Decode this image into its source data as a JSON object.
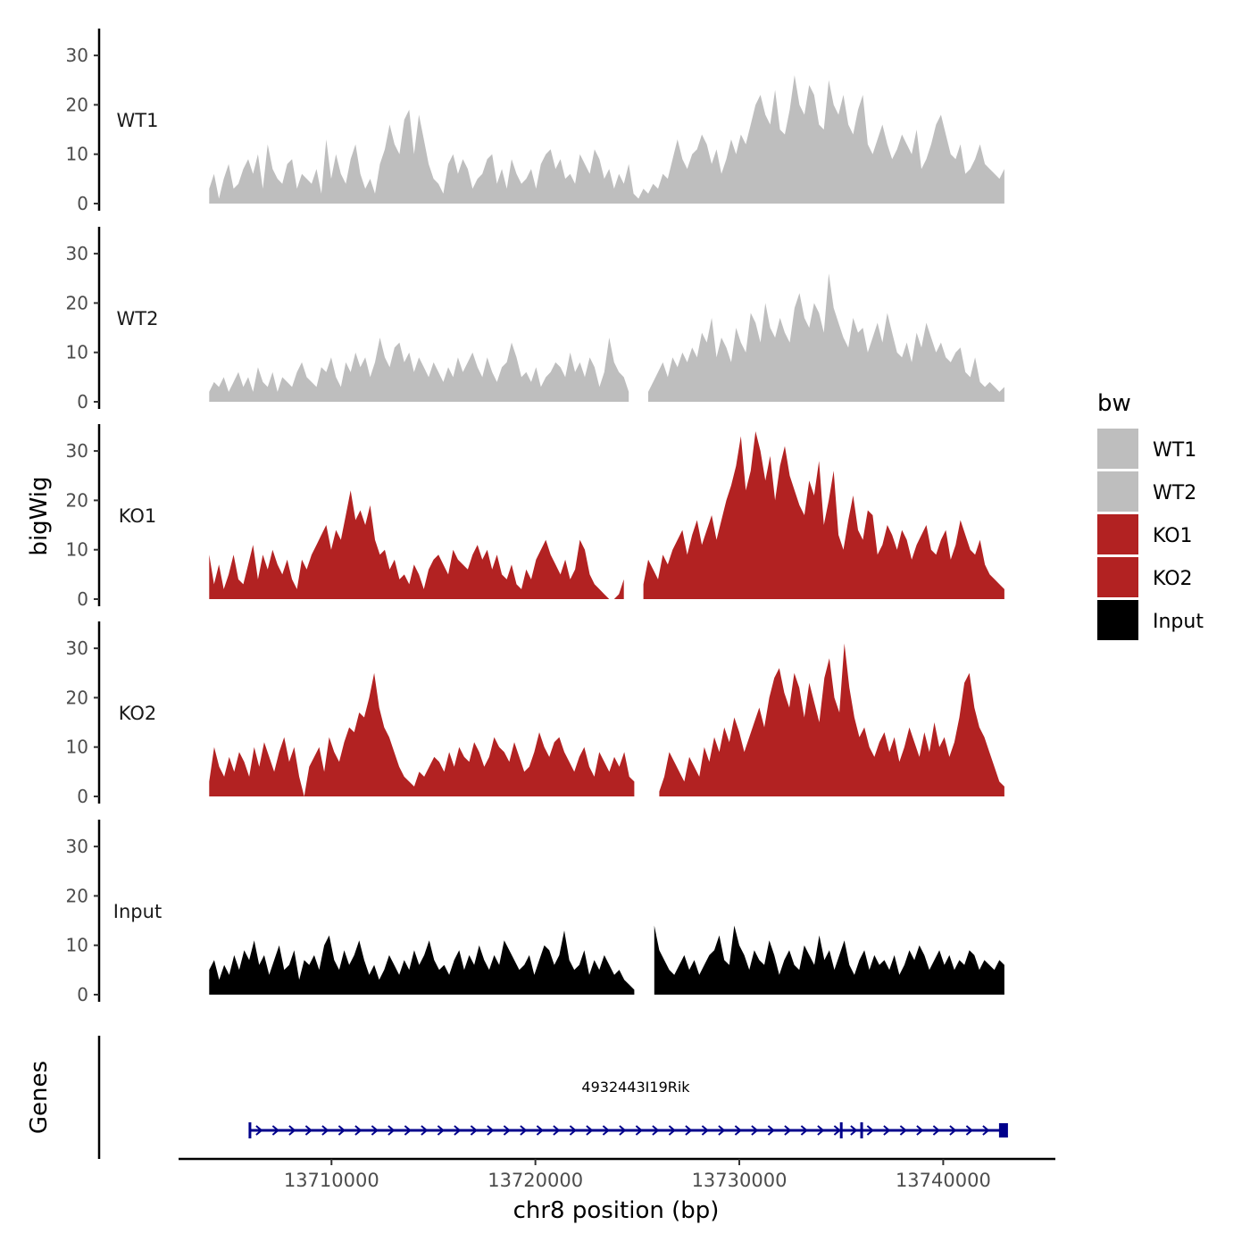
{
  "chart_data": {
    "type": "area",
    "ylabel": "bigWig",
    "xlabel": "chr8 position (bp)",
    "gene_track_label": "Genes",
    "legend_title": "bw",
    "x_range": [
      13704000,
      13743000
    ],
    "x_axis_range": [
      13702500,
      13745500
    ],
    "ylim": [
      0,
      35
    ],
    "y_ticks": [
      0,
      10,
      20,
      30
    ],
    "x_ticks": [
      13710000,
      13720000,
      13730000,
      13740000
    ],
    "tracks": [
      {
        "name": "WT1",
        "color": "#bebebe",
        "values": [
          3,
          6,
          1,
          5,
          8,
          3,
          4,
          7,
          9,
          6,
          10,
          3,
          12,
          7,
          5,
          4,
          8,
          9,
          3,
          6,
          5,
          4,
          7,
          2,
          13,
          5,
          10,
          6,
          4,
          9,
          12,
          6,
          3,
          5,
          2,
          8,
          11,
          16,
          12,
          10,
          17,
          19,
          10,
          18,
          13,
          8,
          5,
          4,
          2,
          8,
          10,
          6,
          9,
          7,
          3,
          5,
          6,
          9,
          10,
          4,
          7,
          3,
          9,
          6,
          4,
          5,
          7,
          3,
          8,
          10,
          11,
          7,
          9,
          5,
          6,
          4,
          10,
          8,
          6,
          11,
          9,
          5,
          7,
          3,
          6,
          4,
          8,
          2,
          1,
          3,
          2,
          4,
          3,
          6,
          5,
          9,
          13,
          9,
          7,
          10,
          11,
          14,
          12,
          8,
          11,
          6,
          9,
          13,
          10,
          14,
          12,
          16,
          20,
          22,
          18,
          16,
          23,
          15,
          14,
          19,
          26,
          20,
          18,
          24,
          22,
          16,
          15,
          25,
          20,
          18,
          22,
          16,
          14,
          19,
          22,
          12,
          10,
          13,
          16,
          12,
          9,
          11,
          14,
          12,
          10,
          15,
          7,
          9,
          12,
          16,
          18,
          14,
          10,
          9,
          12,
          6,
          7,
          9,
          12,
          8,
          7,
          6,
          5,
          7
        ],
        "gaps": []
      },
      {
        "name": "WT2",
        "color": "#bebebe",
        "values": [
          2,
          4,
          3,
          5,
          2,
          4,
          6,
          3,
          5,
          2,
          7,
          4,
          3,
          6,
          2,
          5,
          4,
          3,
          6,
          8,
          5,
          4,
          3,
          7,
          6,
          9,
          5,
          3,
          8,
          6,
          10,
          7,
          9,
          5,
          8,
          13,
          9,
          7,
          11,
          12,
          8,
          10,
          6,
          9,
          7,
          5,
          8,
          6,
          4,
          7,
          5,
          9,
          6,
          8,
          10,
          7,
          5,
          9,
          6,
          4,
          7,
          8,
          12,
          9,
          5,
          6,
          4,
          7,
          3,
          5,
          6,
          8,
          7,
          5,
          10,
          6,
          8,
          5,
          9,
          7,
          3,
          6,
          13,
          8,
          6,
          5,
          2,
          1,
          0,
          1,
          2,
          4,
          6,
          8,
          5,
          9,
          7,
          10,
          8,
          11,
          9,
          14,
          12,
          17,
          9,
          13,
          11,
          8,
          15,
          12,
          10,
          18,
          16,
          12,
          20,
          15,
          13,
          17,
          14,
          12,
          19,
          22,
          17,
          15,
          20,
          18,
          14,
          26,
          19,
          16,
          13,
          11,
          17,
          14,
          15,
          10,
          13,
          16,
          12,
          18,
          14,
          10,
          9,
          12,
          8,
          14,
          11,
          16,
          13,
          10,
          12,
          9,
          8,
          10,
          11,
          6,
          5,
          9,
          4,
          3,
          4,
          3,
          2,
          3
        ],
        "gaps": [
          [
            87,
            89
          ]
        ]
      },
      {
        "name": "KO1",
        "color": "#b22222",
        "values": [
          9,
          3,
          7,
          2,
          5,
          9,
          4,
          3,
          7,
          11,
          4,
          9,
          6,
          10,
          7,
          5,
          8,
          4,
          2,
          8,
          6,
          9,
          11,
          13,
          15,
          10,
          14,
          12,
          17,
          22,
          16,
          18,
          15,
          19,
          12,
          9,
          10,
          6,
          8,
          4,
          5,
          3,
          7,
          5,
          2,
          6,
          8,
          9,
          7,
          5,
          10,
          8,
          7,
          6,
          9,
          11,
          8,
          10,
          6,
          9,
          5,
          4,
          7,
          3,
          2,
          6,
          4,
          8,
          10,
          12,
          9,
          7,
          5,
          8,
          4,
          6,
          12,
          10,
          5,
          3,
          2,
          1,
          0,
          0,
          1,
          4,
          2,
          7,
          5,
          3,
          8,
          6,
          4,
          9,
          7,
          10,
          12,
          14,
          9,
          13,
          16,
          11,
          14,
          17,
          12,
          16,
          20,
          23,
          27,
          33,
          22,
          26,
          34,
          30,
          24,
          29,
          20,
          27,
          31,
          25,
          22,
          19,
          17,
          24,
          21,
          28,
          15,
          20,
          26,
          13,
          10,
          16,
          21,
          14,
          12,
          18,
          17,
          9,
          11,
          15,
          13,
          10,
          14,
          12,
          8,
          11,
          13,
          15,
          10,
          9,
          12,
          14,
          8,
          11,
          16,
          13,
          10,
          9,
          12,
          7,
          5,
          4,
          3,
          2
        ],
        "gaps": [
          [
            86,
            88
          ]
        ]
      },
      {
        "name": "KO2",
        "color": "#b22222",
        "values": [
          3,
          10,
          6,
          4,
          8,
          5,
          9,
          7,
          4,
          10,
          6,
          11,
          8,
          5,
          9,
          12,
          7,
          10,
          4,
          0,
          6,
          8,
          10,
          5,
          12,
          9,
          7,
          11,
          14,
          13,
          17,
          16,
          20,
          25,
          18,
          14,
          12,
          9,
          6,
          4,
          3,
          2,
          5,
          4,
          6,
          8,
          7,
          5,
          9,
          6,
          10,
          8,
          7,
          11,
          9,
          6,
          8,
          12,
          10,
          9,
          7,
          11,
          8,
          5,
          6,
          9,
          13,
          10,
          8,
          11,
          12,
          9,
          7,
          5,
          8,
          10,
          6,
          4,
          9,
          7,
          5,
          8,
          6,
          9,
          4,
          3,
          2,
          1,
          0,
          0,
          1,
          4,
          9,
          7,
          5,
          3,
          8,
          6,
          4,
          10,
          7,
          12,
          9,
          14,
          11,
          16,
          13,
          9,
          12,
          15,
          18,
          14,
          20,
          24,
          26,
          21,
          18,
          25,
          22,
          16,
          23,
          19,
          15,
          24,
          28,
          20,
          17,
          31,
          22,
          16,
          12,
          14,
          10,
          8,
          11,
          13,
          9,
          12,
          7,
          10,
          14,
          11,
          8,
          13,
          9,
          15,
          10,
          12,
          8,
          11,
          16,
          23,
          25,
          18,
          14,
          12,
          9,
          6,
          3,
          2
        ],
        "gaps": [
          [
            86,
            89
          ]
        ]
      },
      {
        "name": "Input",
        "color": "#000000",
        "values": [
          5,
          7,
          3,
          6,
          4,
          8,
          5,
          9,
          7,
          11,
          6,
          8,
          4,
          7,
          10,
          5,
          6,
          9,
          3,
          7,
          6,
          8,
          5,
          10,
          12,
          7,
          5,
          9,
          6,
          8,
          11,
          7,
          4,
          6,
          3,
          5,
          8,
          6,
          4,
          7,
          5,
          9,
          6,
          8,
          11,
          7,
          5,
          6,
          4,
          7,
          9,
          5,
          8,
          6,
          10,
          7,
          5,
          8,
          6,
          11,
          9,
          7,
          5,
          6,
          8,
          4,
          7,
          10,
          9,
          6,
          8,
          13,
          7,
          5,
          6,
          9,
          4,
          7,
          5,
          8,
          6,
          4,
          5,
          3,
          2,
          1,
          0,
          0,
          1,
          14,
          9,
          7,
          5,
          4,
          6,
          8,
          5,
          7,
          4,
          6,
          8,
          9,
          12,
          7,
          6,
          14,
          10,
          8,
          5,
          9,
          7,
          6,
          11,
          8,
          4,
          7,
          9,
          6,
          5,
          10,
          8,
          6,
          12,
          7,
          9,
          5,
          8,
          11,
          6,
          4,
          7,
          9,
          5,
          8,
          6,
          7,
          5,
          8,
          4,
          6,
          9,
          7,
          10,
          8,
          5,
          7,
          9,
          6,
          8,
          5,
          7,
          6,
          9,
          8,
          5,
          7,
          6,
          5,
          7,
          6
        ],
        "gaps": [
          [
            86,
            88
          ]
        ]
      }
    ],
    "legend": [
      {
        "label": "WT1",
        "color": "#bebebe"
      },
      {
        "label": "WT2",
        "color": "#bebebe"
      },
      {
        "label": "KO1",
        "color": "#b22222"
      },
      {
        "label": "KO2",
        "color": "#b22222"
      },
      {
        "label": "Input",
        "color": "#000000"
      }
    ],
    "gene": {
      "name": "4932443I19Rik",
      "start": 13706000,
      "end": 13743000,
      "strand": "+",
      "color": "#00008b",
      "marks": [
        13735000,
        13736000
      ]
    }
  }
}
